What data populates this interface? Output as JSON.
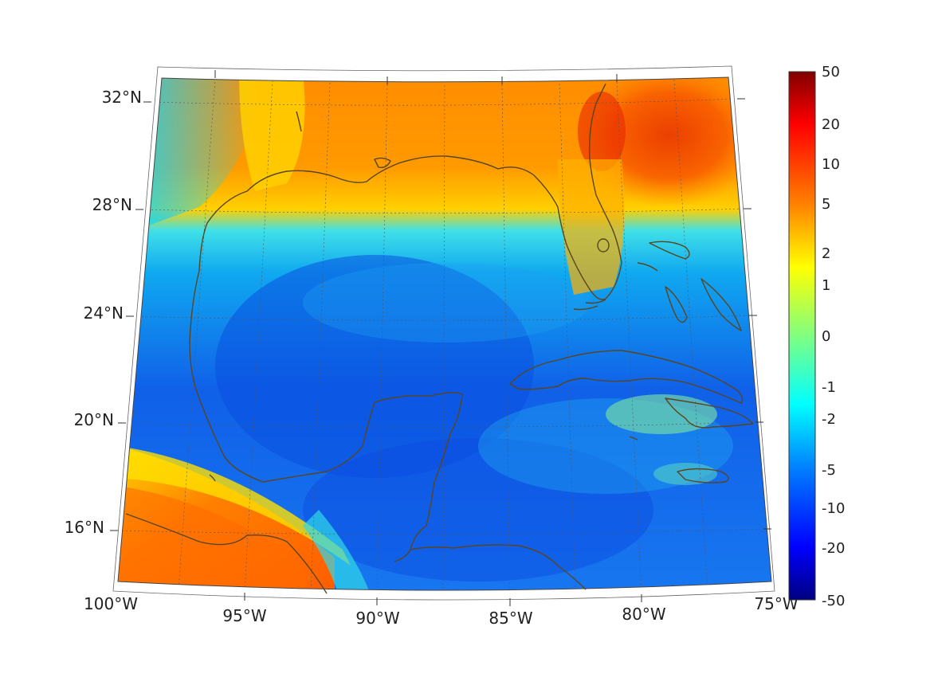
{
  "map": {
    "projection": "lambert-conformal",
    "region": "Gulf of Mexico and Caribbean",
    "lat_labels": [
      "32°N",
      "28°N",
      "24°N",
      "20°N",
      "16°N"
    ],
    "lon_labels": [
      "100°W",
      "95°W",
      "90°W",
      "85°W",
      "80°W",
      "75°W"
    ],
    "lon_range": [
      -100,
      -75
    ],
    "lat_range": [
      14,
      33
    ],
    "coastline_color": "#5a4520",
    "graticule_style": "dotted"
  },
  "colorbar": {
    "colormap": "jet",
    "scale": "nonlinear",
    "tick_labels": [
      "50",
      "20",
      "10",
      "5",
      "2",
      "1",
      "0",
      "-1",
      "-2",
      "-5",
      "-10",
      "-20",
      "-50"
    ]
  }
}
